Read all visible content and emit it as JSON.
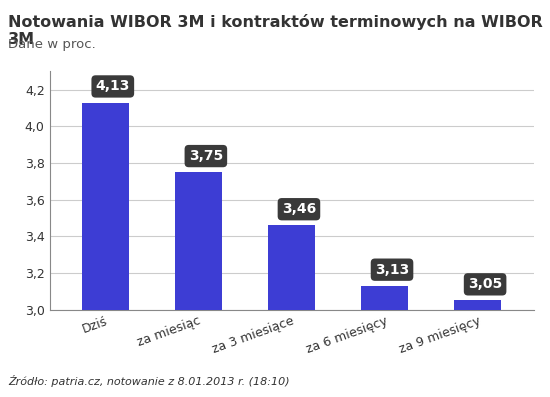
{
  "chart_data": {
    "type": "bar",
    "title": "Notowania WIBOR 3M i kontraktów terminowych na WIBOR 3M",
    "subtitle": "Dane w proc.",
    "source": "Źródło: patria.cz, notowanie z 8.01.2013 r. (18:10)",
    "categories": [
      "Dziś",
      "za miesiąc",
      "za 3 miesiące",
      "za 6 miesięcy",
      "za 9 miesięcy"
    ],
    "values": [
      4.13,
      3.75,
      3.46,
      3.13,
      3.05
    ],
    "value_labels": [
      "4,13",
      "3,75",
      "3,46",
      "3,13",
      "3,05"
    ],
    "data_labels": true,
    "color": "#3d3dd4",
    "ylim": [
      3.0,
      4.3
    ],
    "yticks": [
      {
        "value": 3.0,
        "label": "3,0"
      },
      {
        "value": 3.2,
        "label": "3,2"
      },
      {
        "value": 3.4,
        "label": "3,4"
      },
      {
        "value": 3.6,
        "label": "3,6"
      },
      {
        "value": 3.8,
        "label": "3,8"
      },
      {
        "value": 4.0,
        "label": "4,0"
      },
      {
        "value": 4.2,
        "label": "4,2"
      }
    ],
    "grid": true
  }
}
